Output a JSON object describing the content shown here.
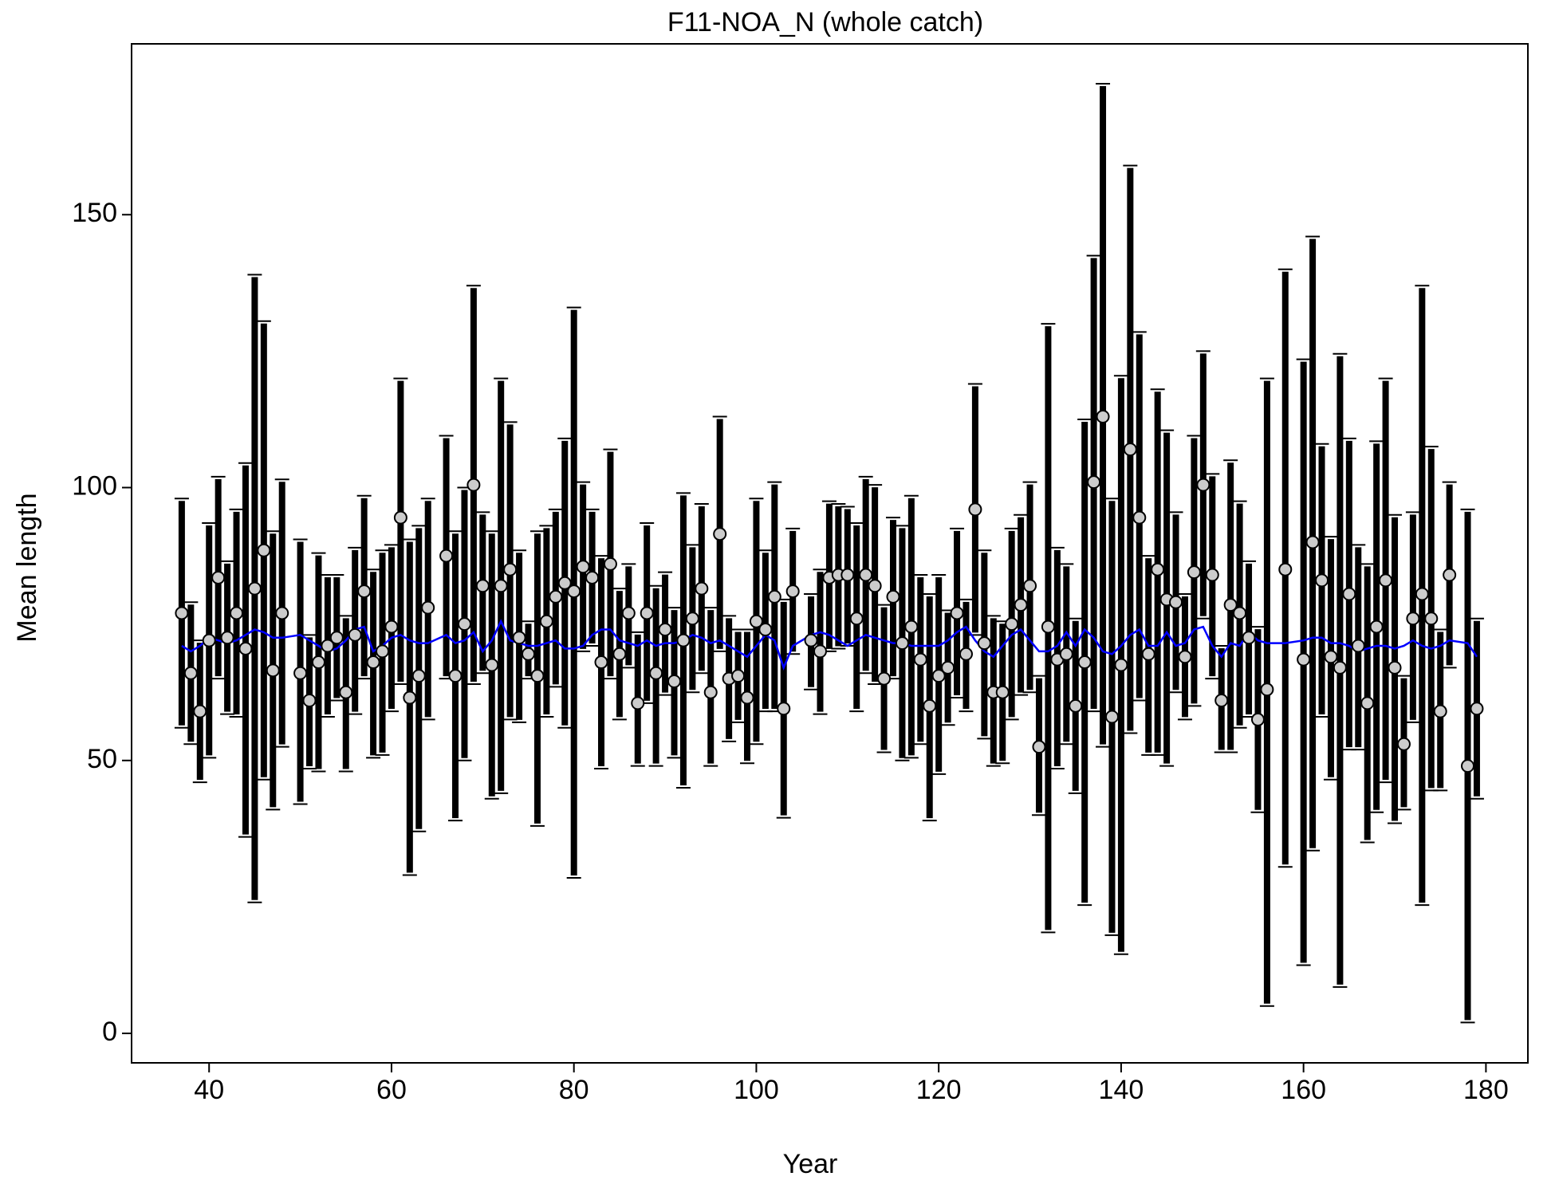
{
  "chart_data": {
    "type": "errorbar",
    "title": "F11-NOA_N (whole catch)",
    "x_label": "Year",
    "y_label": "Mean length",
    "xlim": [
      31.5,
      184.6
    ],
    "ylim": [
      -5.4,
      181.3
    ],
    "xticks": [
      40,
      60,
      80,
      100,
      120,
      140,
      160,
      180
    ],
    "yticks": [
      0,
      50,
      100,
      150
    ],
    "point_color": "#cccccc",
    "bar_color": "#000000",
    "line_color": "#0000ff",
    "x": [
      37,
      38,
      39,
      40,
      41,
      42,
      43,
      44,
      45,
      46,
      47,
      48,
      50,
      51,
      52,
      53,
      54,
      55,
      56,
      57,
      58,
      59,
      60,
      61,
      62,
      63,
      64,
      66,
      67,
      68,
      69,
      70,
      71,
      72,
      73,
      74,
      75,
      76,
      77,
      78,
      79,
      80,
      81,
      82,
      83,
      84,
      85,
      86,
      87,
      88,
      89,
      90,
      91,
      92,
      93,
      94,
      95,
      96,
      97,
      98,
      99,
      100,
      101,
      102,
      103,
      104,
      106,
      107,
      108,
      109,
      110,
      111,
      112,
      113,
      114,
      115,
      116,
      117,
      118,
      119,
      120,
      121,
      122,
      123,
      124,
      125,
      126,
      127,
      128,
      129,
      130,
      131,
      132,
      133,
      134,
      135,
      136,
      137,
      138,
      139,
      140,
      141,
      142,
      143,
      144,
      145,
      146,
      147,
      148,
      149,
      150,
      151,
      152,
      153,
      154,
      155,
      156,
      158,
      160,
      161,
      162,
      163,
      164,
      165,
      166,
      167,
      168,
      169,
      170,
      171,
      172,
      173,
      174,
      175,
      176,
      178,
      179
    ],
    "values": [
      77,
      66,
      59,
      72,
      83.5,
      72.5,
      77,
      70.5,
      81.5,
      88.5,
      66.5,
      77,
      66,
      61,
      68,
      71,
      72.5,
      62.5,
      73,
      81,
      68,
      70,
      74.5,
      94.5,
      61.5,
      65.5,
      78,
      87.5,
      65.5,
      75,
      100.5,
      82,
      67.5,
      82,
      85,
      72.5,
      69.5,
      65.5,
      75.5,
      80,
      82.5,
      81,
      85.5,
      83.5,
      68,
      86,
      69.5,
      77,
      60.5,
      77,
      66,
      74,
      64.5,
      72,
      76,
      81.5,
      62.5,
      91.5,
      65,
      65.5,
      61.5,
      75.5,
      74,
      80,
      59.5,
      81,
      72,
      70,
      83.5,
      84,
      84,
      76,
      84,
      82,
      65,
      80,
      71.5,
      74.5,
      68.5,
      60,
      65.5,
      67,
      77,
      69.5,
      96,
      71.5,
      62.5,
      62.5,
      75,
      78.5,
      82,
      52.5,
      74.5,
      68.5,
      69.5,
      60,
      68,
      101,
      113,
      58,
      67.5,
      107,
      94.5,
      69.5,
      85,
      79.5,
      79,
      69,
      84.5,
      100.5,
      84,
      61,
      78.5,
      77,
      72.5,
      57.5,
      63,
      85,
      68.5,
      90,
      83,
      69,
      67,
      80.5,
      71,
      60.5,
      74.5,
      83,
      67,
      53,
      76,
      80.5,
      76,
      59,
      84,
      49,
      59.5
    ],
    "upper": [
      98,
      79,
      72,
      93.5,
      102,
      86.5,
      96,
      104.5,
      139,
      130.5,
      92,
      101.5,
      90.5,
      73,
      88,
      84,
      84,
      76.5,
      89,
      98.5,
      85,
      88.5,
      89.5,
      120,
      90.5,
      93,
      98,
      109.5,
      92,
      100,
      137,
      95.5,
      92,
      120,
      112,
      88.5,
      75.5,
      92,
      93,
      96,
      109,
      133,
      101,
      96,
      87.5,
      107,
      81.5,
      86,
      73.5,
      93.5,
      82,
      84.5,
      78,
      99,
      89.5,
      97,
      78,
      113,
      76.5,
      74,
      74,
      98,
      88.5,
      101,
      79.5,
      92.5,
      80.5,
      85,
      97.5,
      97,
      96.5,
      93.5,
      102,
      100.5,
      78.5,
      94.5,
      93,
      98.5,
      84,
      80.5,
      84,
      77.5,
      92.5,
      79.5,
      119,
      88.5,
      76.5,
      75.5,
      92.5,
      95,
      101,
      65.5,
      130,
      89,
      86,
      76,
      112.5,
      142.5,
      174,
      98,
      120.5,
      159,
      128.5,
      87.5,
      118,
      110.5,
      95.5,
      80.5,
      109.5,
      125,
      102.5,
      71,
      105,
      97.5,
      86.5,
      74.5,
      120,
      140,
      123.5,
      146,
      108,
      91,
      124.5,
      109,
      89.5,
      86,
      108.5,
      120,
      95,
      65.5,
      95.5,
      137,
      107.5,
      74,
      101,
      96,
      76
    ],
    "lower": [
      56,
      53,
      46,
      50.5,
      65,
      58.5,
      58,
      36,
      24,
      46.5,
      41,
      52.5,
      42,
      48.5,
      48,
      58,
      61,
      48,
      58.5,
      65,
      50.5,
      51,
      59,
      64,
      29,
      37,
      57.5,
      65,
      39,
      50,
      64,
      66,
      43,
      44,
      57.5,
      57,
      65,
      38,
      58,
      63.5,
      56,
      28.5,
      70,
      71,
      48.5,
      65,
      57.5,
      67,
      49,
      60.5,
      49,
      62,
      50.5,
      45,
      62.5,
      66,
      49,
      70,
      53.5,
      57,
      49.5,
      53,
      59,
      59,
      39.5,
      69.5,
      63,
      58.5,
      70,
      70.5,
      71,
      59,
      66,
      64,
      51.5,
      65,
      50,
      50.5,
      53,
      39,
      47.5,
      56.5,
      61.5,
      59,
      73,
      54,
      49,
      49.5,
      57.5,
      62,
      62.5,
      40,
      18.5,
      48.5,
      53,
      44,
      23.5,
      59,
      52.5,
      18,
      14.5,
      55,
      61,
      51,
      51,
      49,
      62.5,
      57.5,
      60,
      76,
      65,
      51.5,
      51.5,
      56,
      58,
      40.5,
      5,
      30.5,
      12.5,
      33.5,
      58,
      46.5,
      8.5,
      52,
      52,
      35,
      40.5,
      46,
      38.5,
      41,
      57,
      23.5,
      44.5,
      44.5,
      67,
      2,
      43
    ],
    "expected": [
      71,
      70,
      71,
      72.5,
      72,
      71.5,
      72,
      73,
      74,
      73.5,
      72.5,
      72.5,
      73,
      72,
      71,
      70,
      70.5,
      72,
      74,
      74.5,
      70,
      71,
      72.5,
      73,
      72,
      71.5,
      71.5,
      73,
      71.5,
      72,
      73.5,
      70,
      72,
      75.5,
      72,
      71.5,
      71,
      71,
      71.5,
      72,
      70.5,
      70.5,
      71,
      73,
      74,
      74,
      72,
      71.5,
      71,
      72,
      71,
      71.5,
      71.5,
      72,
      73,
      72.5,
      71.5,
      72,
      71,
      70,
      69,
      71,
      73,
      72,
      67,
      71,
      73,
      73.5,
      73,
      72,
      71,
      72,
      73,
      72.5,
      72,
      71.5,
      71.5,
      71,
      71,
      71,
      71,
      72,
      73.5,
      74.5,
      72,
      70,
      69,
      71,
      73,
      74,
      72,
      70,
      70,
      71,
      73.5,
      71,
      74,
      72.5,
      70,
      69.5,
      71,
      73,
      74,
      71,
      71,
      73.5,
      71,
      71.5,
      74,
      74.5,
      71,
      69,
      71.5,
      71,
      73.5,
      72,
      71.5,
      71.5,
      72,
      72.5,
      72.5,
      71.5,
      71.5,
      71,
      70,
      70.5,
      71,
      71,
      70.5,
      71,
      72,
      71,
      70.5,
      71,
      72,
      71.5,
      69
    ]
  }
}
